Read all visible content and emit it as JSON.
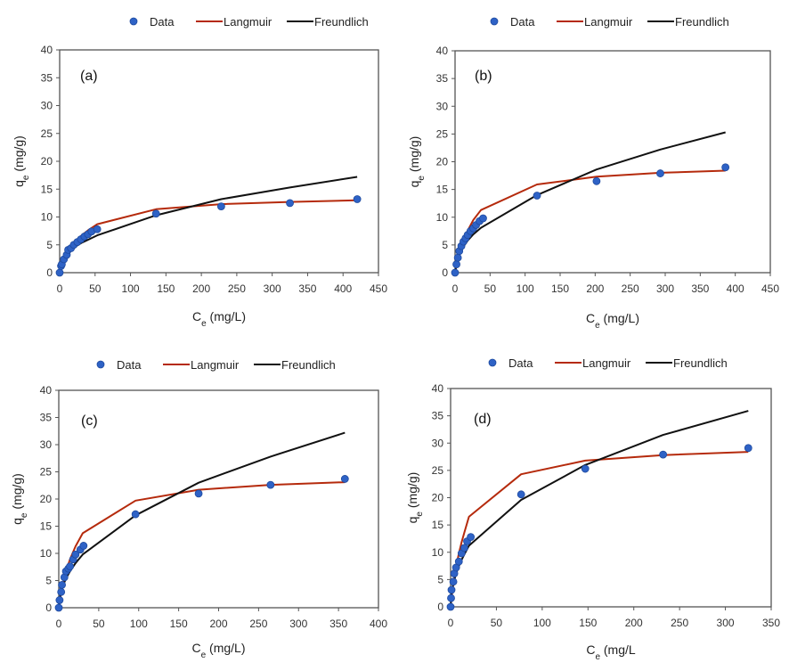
{
  "colors": {
    "data": "#2e62c6",
    "data_edge": "#1f4a9e",
    "langmuir": "#b52a0c",
    "freundlich": "#111111",
    "axis": "#444444"
  },
  "chart_data": [
    {
      "type": "scatter",
      "panel": "(a)",
      "legend": [
        "Data",
        "Langmuir",
        "Freundlich"
      ],
      "legend_position": "top-center",
      "xlabel": "Ce (mg/L)",
      "xlabel_main": "C",
      "xlabel_sub": "e",
      "xlabel_rest": " (mg/L)",
      "ylabel_main": "q",
      "ylabel_sub": "e",
      "ylabel_rest": " (mg/g)",
      "xlim": [
        0,
        450
      ],
      "ylim": [
        0,
        40
      ],
      "xticks": [
        0,
        50,
        100,
        150,
        200,
        250,
        300,
        350,
        400,
        450
      ],
      "yticks": [
        0,
        5,
        10,
        15,
        20,
        25,
        30,
        35,
        40
      ],
      "grid": false,
      "series": [
        {
          "name": "Data",
          "kind": "points",
          "x": [
            0,
            2,
            3,
            6,
            10,
            12,
            16,
            20,
            25,
            30,
            35,
            40,
            45,
            53,
            136,
            228,
            325,
            420
          ],
          "y": [
            0,
            1.2,
            1.5,
            2.4,
            3.2,
            4.1,
            4.4,
            5.0,
            5.5,
            6.0,
            6.5,
            6.9,
            7.4,
            7.8,
            10.6,
            11.9,
            12.5,
            13.2
          ]
        },
        {
          "name": "Langmuir",
          "kind": "line",
          "x": [
            0,
            2,
            6,
            12,
            20,
            30,
            40,
            53,
            136,
            228,
            325,
            420
          ],
          "y": [
            0,
            0.8,
            2.3,
            4.0,
            5.3,
            6.6,
            7.6,
            8.7,
            11.4,
            12.3,
            12.7,
            13.0
          ]
        },
        {
          "name": "Freundlich",
          "kind": "line",
          "x": [
            0,
            2,
            6,
            12,
            20,
            30,
            40,
            53,
            136,
            228,
            325,
            420
          ],
          "y": [
            0,
            1.4,
            2.6,
            3.6,
            4.5,
            5.3,
            5.9,
            6.7,
            10.3,
            13.2,
            15.3,
            17.2
          ]
        }
      ]
    },
    {
      "type": "scatter",
      "panel": "(b)",
      "legend": [
        "Data",
        "Langmuir",
        "Freundlich"
      ],
      "legend_position": "top-center",
      "xlabel": "Ce (mg/L)",
      "xlabel_main": "C",
      "xlabel_sub": "e",
      "xlabel_rest": " (mg/L)",
      "ylabel_main": "q",
      "ylabel_sub": "e",
      "ylabel_rest": " (mg/g)",
      "xlim": [
        0,
        450
      ],
      "ylim": [
        0,
        40
      ],
      "xticks": [
        0,
        50,
        100,
        150,
        200,
        250,
        300,
        350,
        400,
        450
      ],
      "yticks": [
        0,
        5,
        10,
        15,
        20,
        25,
        30,
        35,
        40
      ],
      "grid": false,
      "series": [
        {
          "name": "Data",
          "kind": "points",
          "x": [
            0,
            2,
            4,
            6,
            9,
            12,
            15,
            18,
            22,
            26,
            30,
            35,
            40,
            117,
            202,
            293,
            386
          ],
          "y": [
            0,
            1.5,
            2.7,
            3.9,
            4.8,
            5.6,
            6.2,
            6.8,
            7.5,
            8.0,
            8.6,
            9.3,
            9.8,
            13.9,
            16.5,
            17.9,
            19.0
          ]
        },
        {
          "name": "Langmuir",
          "kind": "line",
          "x": [
            0,
            2,
            6,
            12,
            18,
            26,
            37,
            117,
            202,
            293,
            386
          ],
          "y": [
            0,
            1.3,
            3.5,
            5.9,
            7.6,
            9.5,
            11.3,
            15.9,
            17.3,
            18.0,
            18.4
          ]
        },
        {
          "name": "Freundlich",
          "kind": "line",
          "x": [
            0,
            2,
            6,
            12,
            18,
            26,
            37,
            117,
            202,
            293,
            386
          ],
          "y": [
            0,
            1.6,
            3.2,
            4.7,
            5.8,
            6.9,
            8.1,
            14.0,
            18.6,
            22.2,
            25.3
          ]
        }
      ]
    },
    {
      "type": "scatter",
      "panel": "(c)",
      "legend": [
        "Data",
        "Langmuir",
        "Freundlich"
      ],
      "legend_position": "top-center",
      "xlabel": "Ce (mg/L)",
      "xlabel_main": "C",
      "xlabel_sub": "e",
      "xlabel_rest": " (mg/L)",
      "ylabel_main": "q",
      "ylabel_sub": "e",
      "ylabel_rest": " (mg/g)",
      "xlim": [
        0,
        400
      ],
      "ylim": [
        0,
        40
      ],
      "xticks": [
        0,
        50,
        100,
        150,
        200,
        250,
        300,
        350,
        400
      ],
      "yticks": [
        0,
        5,
        10,
        15,
        20,
        25,
        30,
        35,
        40
      ],
      "grid": false,
      "series": [
        {
          "name": "Data",
          "kind": "points",
          "x": [
            0,
            1,
            3,
            4,
            7,
            9,
            12,
            14,
            18,
            21,
            27,
            31,
            96,
            175,
            265,
            358
          ],
          "y": [
            0,
            1.4,
            2.9,
            4.2,
            5.6,
            6.7,
            7.2,
            7.6,
            8.9,
            9.8,
            10.7,
            11.4,
            17.2,
            21.0,
            22.6,
            23.7
          ]
        },
        {
          "name": "Langmuir",
          "kind": "line",
          "x": [
            0,
            1,
            4,
            9,
            14,
            21,
            30,
            96,
            175,
            265,
            358
          ],
          "y": [
            0,
            1.0,
            3.6,
            6.7,
            8.9,
            11.3,
            13.7,
            19.7,
            21.7,
            22.6,
            23.1
          ]
        },
        {
          "name": "Freundlich",
          "kind": "line",
          "x": [
            0,
            1,
            4,
            9,
            14,
            21,
            30,
            96,
            175,
            265,
            358
          ],
          "y": [
            0,
            1.6,
            3.6,
            5.4,
            6.7,
            8.2,
            9.8,
            17.0,
            23.0,
            27.8,
            32.2
          ]
        }
      ]
    },
    {
      "type": "scatter",
      "panel": "(d)",
      "legend": [
        "Data",
        "Langmuir",
        "Freundlich"
      ],
      "legend_position": "top-center",
      "xlabel": "Ce (mg/L",
      "xlabel_main": "C",
      "xlabel_sub": "e",
      "xlabel_rest": " (mg/L",
      "ylabel_main": "q",
      "ylabel_sub": "e",
      "ylabel_rest": " (mg/g)",
      "xlim": [
        0,
        350
      ],
      "ylim": [
        0,
        40
      ],
      "xticks": [
        0,
        50,
        100,
        150,
        200,
        250,
        300,
        350
      ],
      "yticks": [
        0,
        5,
        10,
        15,
        20,
        25,
        30,
        35,
        40
      ],
      "grid": false,
      "series": [
        {
          "name": "Data",
          "kind": "points",
          "x": [
            0,
            0.5,
            1,
            3,
            4,
            6,
            9,
            12,
            15,
            18,
            22,
            77,
            147,
            232,
            325
          ],
          "y": [
            0,
            1.6,
            3.1,
            4.6,
            6.1,
            7.2,
            8.3,
            9.8,
            10.8,
            12.0,
            12.8,
            20.6,
            25.3,
            27.9,
            29.1
          ]
        },
        {
          "name": "Langmuir",
          "kind": "line",
          "x": [
            0,
            1,
            3,
            6,
            9,
            12,
            15,
            20,
            77,
            147,
            232,
            325
          ],
          "y": [
            0,
            1.6,
            4.2,
            7.4,
            9.8,
            11.8,
            13.6,
            16.5,
            24.3,
            26.8,
            27.8,
            28.4
          ]
        },
        {
          "name": "Freundlich",
          "kind": "line",
          "x": [
            0,
            1,
            3,
            6,
            9,
            12,
            15,
            20,
            77,
            147,
            232,
            325
          ],
          "y": [
            0,
            2.4,
            4.3,
            6.1,
            7.5,
            8.6,
            9.6,
            11.2,
            19.6,
            26.0,
            31.5,
            35.9
          ]
        }
      ]
    }
  ]
}
